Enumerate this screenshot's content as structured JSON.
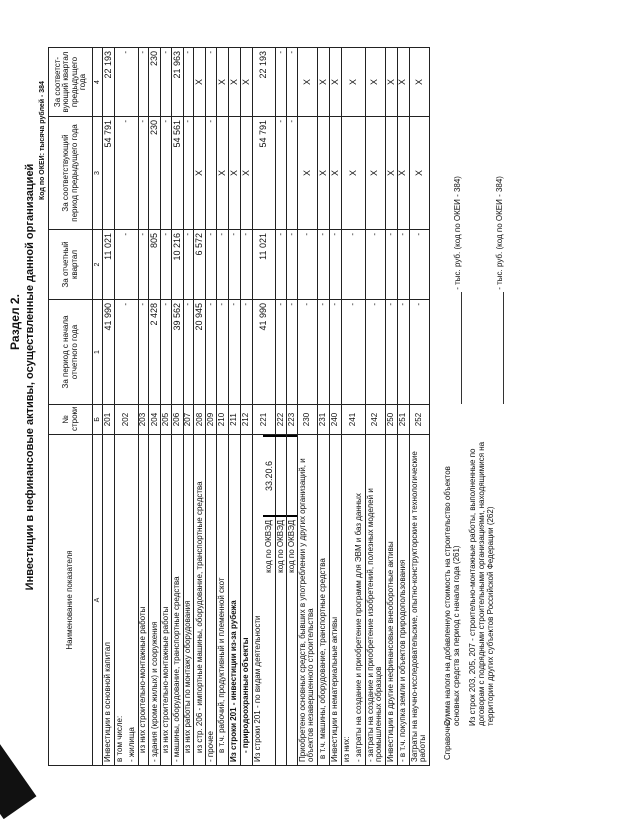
{
  "section_title": "Раздел 2.",
  "subtitle": "Инвестиции в нефинансовые активы, осуществленные данной организацией",
  "okei_note": "Код по ОКЕИ: тысяча рублей - 384",
  "headers": [
    "Наименование показателя",
    "№ строки",
    "За период с начала отчетного года",
    "За отчетный квартал",
    "За соответствующий период предыдущего года",
    "За соответст-вующий квартал предыдущего года"
  ],
  "index_row": [
    "А",
    "Б",
    "1",
    "2",
    "3",
    "4"
  ],
  "rows": [
    {
      "label": "Инвестиции в основной капитал",
      "code": "201",
      "values": [
        "41 990",
        "11 021",
        "54 791",
        "22 193"
      ]
    },
    {
      "label": "в том числе:",
      "label2": "- жилища",
      "code": "202",
      "values": [
        "-",
        "-",
        "-",
        "-"
      ]
    },
    {
      "label": "из них строительно-монтажные работы",
      "indent": 2,
      "code": "203",
      "values": [
        "-",
        "-",
        "-",
        "-"
      ]
    },
    {
      "label": "- здания (кроме жилых) и сооружения",
      "code": "204",
      "values": [
        "2 428",
        "805",
        "230",
        "230"
      ]
    },
    {
      "label": "из них строительно-монтажные работы",
      "indent": 2,
      "code": "205",
      "values": [
        "-",
        "-",
        "-",
        "-"
      ]
    },
    {
      "label": "- машины, оборудование, транспортные средства",
      "code": "206",
      "values": [
        "39 562",
        "10 216",
        "54 561",
        "21 963"
      ]
    },
    {
      "label": "из них работы по монтажу оборудования",
      "indent": 2,
      "code": "207",
      "values": [
        "-",
        "-",
        "-",
        "-"
      ]
    },
    {
      "label": "из стр. 206 - импортные машины, оборудование, транспортные средства",
      "indent": 2,
      "code": "208",
      "values": [
        "20 945",
        "6 572",
        "X",
        "X"
      ]
    },
    {
      "label": "- прочее",
      "code": "209",
      "values": [
        "-",
        "-",
        "-",
        "-"
      ]
    },
    {
      "label": "в т.ч. рабочий, продуктивный и племенной скот",
      "indent": 2,
      "code": "210",
      "values": [
        "-",
        "-",
        "X",
        "X"
      ]
    },
    {
      "label": "Из строки 201 - инвестиции из-за рубежа",
      "bold": true,
      "code": "211",
      "values": [
        "-",
        "-",
        "X",
        "X"
      ]
    },
    {
      "label": "- природоохранные объекты",
      "bold": true,
      "indent": 2,
      "code": "212",
      "values": [
        "-",
        "-",
        "X",
        "X"
      ]
    },
    {
      "label": "Из строки 201 - по видам деятельности",
      "okved": "код по ОКВЭД",
      "okved_value": "33.20.6",
      "code": "221",
      "values": [
        "41 990",
        "11 021",
        "54 791",
        "22 193"
      ]
    },
    {
      "okved": "код по ОКВЭД",
      "okved_value": "",
      "code": "222",
      "values": [
        "-",
        "-",
        "-",
        "-"
      ]
    },
    {
      "okved": "код по ОКВЭД",
      "okved_value": "",
      "code": "223",
      "values": [
        "-",
        "-",
        "-",
        "-"
      ]
    },
    {
      "label": "Приобретено основных средств, бывших в употреблении у других организаций, и объектов незавершенного строительства",
      "code": "230",
      "values": [
        "-",
        "-",
        "X",
        "X"
      ]
    },
    {
      "label": "в т.ч. машины, оборудование, транспортные средства",
      "indent": 1,
      "code": "231",
      "values": [
        "-",
        "-",
        "X",
        "X"
      ]
    },
    {
      "label": "Инвестиции в нематериальные активы",
      "code": "240",
      "values": [
        "-",
        "-",
        "X",
        "X"
      ]
    },
    {
      "label": "из них:",
      "label2": "- затраты на создание и приобретение программ для ЭВМ и баз данных",
      "code": "241",
      "values": [
        "-",
        "-",
        "X",
        "X"
      ]
    },
    {
      "label": "- затраты на создание и приобретение изобретений, полезных моделей и промышленных образцов",
      "code": "242",
      "values": [
        "-",
        "-",
        "X",
        "X"
      ]
    },
    {
      "label": "Инвестиции в другие нефинансовые внеоборотные активы",
      "code": "250",
      "values": [
        "-",
        "-",
        "X",
        "X"
      ]
    },
    {
      "label": "- в т.ч. покупка земли и объектов природопользования",
      "code": "251",
      "values": [
        "-",
        "-",
        "X",
        "X"
      ]
    },
    {
      "label": "Затраты на научно-исследовательские, опытно-конструкторские и технологические работы",
      "code": "252",
      "values": [
        "-",
        "-",
        "X",
        "X"
      ]
    }
  ],
  "footer": {
    "reference_label": "Справочно:",
    "note1": "Сумма налога на добавленную стоимость на строительство объектов основных средств за период с начала года (261)",
    "note1_unit": "- тыс. руб. (код по ОКЕИ - 384)",
    "note2": "Из строк 203, 205, 207 - строительно-монтажные работы, выполненные по договорам с подрядными строительными организациями, находящимися на территории других субъектов Российской Федерации (262)",
    "note2_unit": "- тыс. руб. (код по ОКЕИ - 384)"
  }
}
